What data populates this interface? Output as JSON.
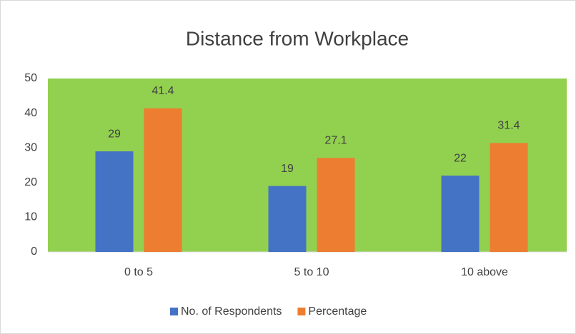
{
  "chart_data": {
    "type": "bar",
    "title": "Distance from Workplace",
    "categories": [
      "0 to 5",
      "5 to 10",
      "10 above"
    ],
    "series": [
      {
        "name": "No. of Respondents",
        "color": "#4472c4",
        "values": [
          29,
          19,
          22
        ]
      },
      {
        "name": "Percentage",
        "color": "#ed7d31",
        "values": [
          41.4,
          27.1,
          31.4
        ]
      }
    ],
    "ylim": [
      0,
      50
    ],
    "yticks": [
      0,
      10,
      20,
      30,
      40,
      50
    ],
    "plot_color": "#92d050",
    "legend": "bottom",
    "data_labels": true
  }
}
